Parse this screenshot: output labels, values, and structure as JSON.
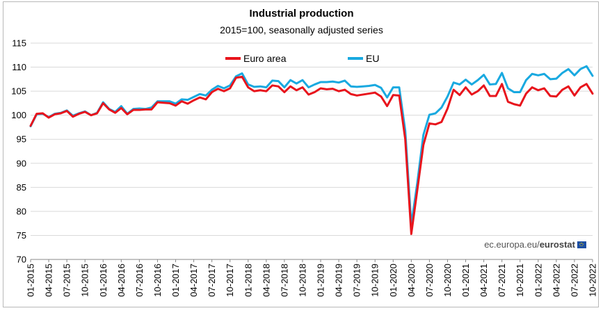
{
  "chart_data": {
    "type": "line",
    "title": "Industrial production",
    "subtitle": "2015=100, seasonally adjusted series",
    "ylim": [
      70,
      115
    ],
    "yticks": [
      70,
      75,
      80,
      85,
      90,
      95,
      100,
      105,
      110,
      115
    ],
    "grid": true,
    "legend_position": "top",
    "start": "01-2015",
    "tick_labels": [
      "01-2015",
      "04-2015",
      "07-2015",
      "10-2015",
      "01-2016",
      "04-2016",
      "07-2016",
      "10-2016",
      "01-2017",
      "04-2017",
      "07-2017",
      "10-2017",
      "01-2018",
      "04-2018",
      "07-2018",
      "10-2018",
      "01-2019",
      "04-2019",
      "07-2019",
      "10-2019",
      "01-2020",
      "04-2020",
      "07-2020",
      "10-2020",
      "01-2021",
      "04-2021",
      "07-2021",
      "10-2021",
      "01-2022",
      "04-2022",
      "07-2022",
      "10-2022"
    ],
    "series": [
      {
        "name": "Euro area",
        "color": "#e8141c",
        "values": [
          97.8,
          100.3,
          100.4,
          99.5,
          100.2,
          100.4,
          100.9,
          99.7,
          100.3,
          100.7,
          100.0,
          100.4,
          102.5,
          101.2,
          100.5,
          101.5,
          100.2,
          101.1,
          101.1,
          101.2,
          101.2,
          102.7,
          102.6,
          102.5,
          102.0,
          102.9,
          102.4,
          103.1,
          103.7,
          103.3,
          104.8,
          105.5,
          105.0,
          105.6,
          107.8,
          108.0,
          105.8,
          105.0,
          105.2,
          105.0,
          106.2,
          106.0,
          104.8,
          106.0,
          105.2,
          105.8,
          104.3,
          104.8,
          105.6,
          105.4,
          105.5,
          105.0,
          105.3,
          104.4,
          104.1,
          104.3,
          104.5,
          104.7,
          103.9,
          101.9,
          104.2,
          104.1,
          95.0,
          75.3,
          84.5,
          93.8,
          98.3,
          98.1,
          98.6,
          101.4,
          105.3,
          104.2,
          105.8,
          104.3,
          105.0,
          106.2,
          104.0,
          104.0,
          106.5,
          102.8,
          102.3,
          102.0,
          104.5,
          105.8,
          105.2,
          105.6,
          104.0,
          103.9,
          105.3,
          106.0,
          104.1,
          105.8,
          106.5,
          104.5
        ]
      },
      {
        "name": "EU",
        "color": "#19a9e0",
        "values": [
          97.7,
          100.2,
          100.3,
          99.6,
          100.3,
          100.5,
          101.0,
          99.9,
          100.4,
          100.8,
          100.0,
          100.5,
          102.7,
          101.3,
          100.7,
          101.9,
          100.3,
          101.3,
          101.4,
          101.3,
          101.6,
          102.9,
          102.9,
          102.9,
          102.4,
          103.3,
          103.2,
          103.8,
          104.4,
          104.1,
          105.3,
          106.1,
          105.6,
          106.2,
          108.1,
          108.7,
          106.4,
          105.9,
          106.0,
          105.8,
          107.2,
          107.1,
          105.8,
          107.3,
          106.6,
          107.3,
          105.8,
          106.4,
          106.9,
          106.9,
          107.0,
          106.8,
          107.2,
          106.0,
          105.9,
          106.0,
          106.1,
          106.3,
          105.7,
          103.7,
          105.8,
          105.8,
          96.8,
          77.2,
          86.0,
          95.9,
          100.1,
          100.4,
          101.6,
          103.9,
          106.8,
          106.4,
          107.4,
          106.4,
          107.3,
          108.4,
          106.4,
          106.5,
          108.8,
          105.6,
          104.8,
          104.8,
          107.3,
          108.6,
          108.3,
          108.6,
          107.5,
          107.6,
          108.8,
          109.6,
          108.3,
          109.6,
          110.2,
          108.2
        ]
      }
    ],
    "source": "ec.europa.eu/",
    "source_brand": "eurostat"
  }
}
